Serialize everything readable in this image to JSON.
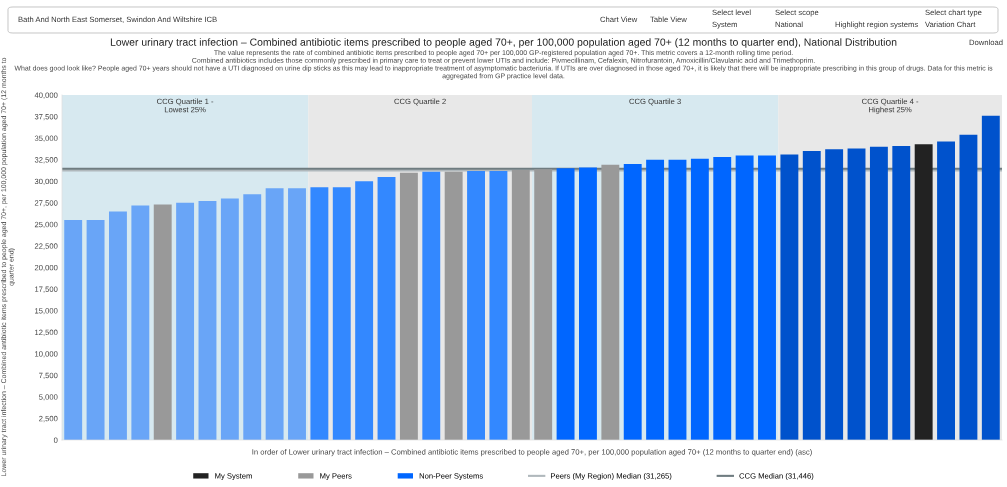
{
  "chart_data": {
    "type": "bar",
    "title": "Lower urinary tract infection – Combined antibiotic items prescribed to people aged 70+, per 100,000 population aged 70+ (12 months to quarter end), National Distribution",
    "subtitle": "The value represents the rate of combined antibiotic items prescribed to people aged 70+ per 100,000 GP-registered population aged 70+. This metric covers a 12-month rolling time period.\nCombined antibiotics includes those commonly prescribed in primary care to treat or prevent lower UTIs and include: Pivmecillinam, Cefalexin, Nitrofurantoin, Amoxicillin/Clavulanic acid and Trimethoprim.\nWhat does good look like? People aged 70+ years should not have a UTI diagnosed on urine dip sticks as this may lead to inappropriate treatment of asymptomatic bacteriuria. If UTIs are over diagnosed in those aged 70+, it is likely that there will be inappropriate prescribing in this group of drugs. Data for this metric is aggregated from GP practice level data.",
    "ylabel": "Lower urinary tract infection – Combined antibiotic items prescribed to people aged 70+, per 100,000 population aged 70+ (12 months to quarter end)",
    "xlabel": "In order of Lower urinary tract infection – Combined antibiotic items prescribed to people aged 70+, per 100,000 population aged 70+ (12 months to quarter end) (asc)",
    "annotations": [
      "CCG Quartile 1 -\nLowest 25%",
      "CCG Quartile 2",
      "CCG Quartile 3",
      "CCG Quartile 4 -\nHighest 25%",
      "Bath And North East Somerset, Swindon And Wiltshire ICB",
      "Chart View",
      "Table View",
      "Select level",
      "System",
      "Select scope",
      "National",
      "Highlight region systems",
      "Select chart type",
      "Variation Chart",
      "Download"
    ],
    "categories": [
      null,
      null,
      null,
      null,
      null,
      null,
      null,
      null,
      null,
      null,
      null,
      null,
      null,
      null,
      null,
      null,
      null,
      null,
      null,
      null,
      null,
      null,
      null,
      null,
      null,
      null,
      null,
      null,
      null,
      null,
      null,
      null,
      null,
      null,
      null,
      null,
      null,
      null,
      null,
      null,
      null,
      null
    ],
    "series": [
      {
        "name": "My System",
        "color": "#222222",
        "values": [
          null,
          null,
          null,
          null,
          null,
          null,
          null,
          null,
          null,
          null,
          null,
          null,
          null,
          null,
          null,
          null,
          null,
          null,
          null,
          null,
          null,
          null,
          null,
          null,
          null,
          null,
          null,
          null,
          null,
          null,
          null,
          null,
          null,
          null,
          null,
          null,
          null,
          null,
          34300,
          null,
          null,
          null
        ]
      },
      {
        "name": "My Peers",
        "color": "#999999",
        "values": [
          null,
          null,
          null,
          null,
          27300,
          null,
          null,
          null,
          null,
          null,
          null,
          null,
          null,
          null,
          null,
          31000,
          null,
          31100,
          null,
          null,
          31300,
          31400,
          null,
          null,
          31900,
          null,
          null,
          null,
          null,
          null,
          null,
          null,
          null,
          null,
          null,
          null,
          null,
          null,
          null,
          null,
          null,
          null
        ]
      },
      {
        "name": "Non-Peer Systems",
        "color": "#0066ff",
        "values": [
          25500,
          25500,
          26500,
          27200,
          null,
          27500,
          27700,
          28000,
          28500,
          29200,
          29200,
          29300,
          29300,
          30000,
          30500,
          null,
          31100,
          null,
          31200,
          31200,
          null,
          null,
          31500,
          31600,
          null,
          32000,
          32500,
          32500,
          32600,
          32800,
          33000,
          33000,
          33100,
          33500,
          33700,
          33800,
          34000,
          34100,
          null,
          34600,
          35400,
          37600
        ],
        "colors": [
          "#69a5f7",
          "#69a5f7",
          "#69a5f7",
          "#69a5f7",
          null,
          "#69a5f7",
          "#69a5f7",
          "#69a5f7",
          "#69a5f7",
          "#69a5f7",
          "#69a5f7",
          "#3388ff",
          "#3388ff",
          "#3388ff",
          "#3388ff",
          null,
          "#3388ff",
          null,
          "#3388ff",
          "#3388ff",
          null,
          null,
          "#0066ff",
          "#0066ff",
          null,
          "#0066ff",
          "#0066ff",
          "#0066ff",
          "#0066ff",
          "#0066ff",
          "#0066ff",
          "#0066ff",
          "#0052cc",
          "#0052cc",
          "#0052cc",
          "#0052cc",
          "#0052cc",
          "#0052cc",
          null,
          "#0052cc",
          "#0052cc",
          "#0052cc"
        ]
      }
    ],
    "ylim": [
      0,
      40000
    ],
    "yticks": [
      0,
      {
        "value": 2500,
        "label": "2,500"
      },
      {
        "value": 5000,
        "label": "5,000"
      },
      {
        "value": 7500,
        "label": "7,500"
      },
      {
        "value": 10000,
        "label": "10,000"
      },
      {
        "value": 12500,
        "label": "12,500"
      },
      {
        "value": 15000,
        "label": "15,000"
      },
      {
        "value": 17500,
        "label": "17,500"
      },
      {
        "value": 20000,
        "label": "20,000"
      },
      {
        "value": 22500,
        "label": "22,500"
      },
      {
        "value": 25000,
        "label": "25,000"
      },
      {
        "value": 27500,
        "label": "27,500"
      },
      {
        "value": 30000,
        "label": "30,000"
      },
      {
        "value": 32500,
        "label": "32,500"
      },
      {
        "value": 35000,
        "label": "35,000"
      },
      {
        "value": 37500,
        "label": "37,500"
      },
      {
        "value": 40000,
        "label": "40,000"
      }
    ],
    "ref_lines": [
      {
        "axis": "y",
        "value": 31265,
        "label": "Peers (My Region) Median (31,265)",
        "color": "#b0b8bc",
        "line_style": "solid"
      },
      {
        "axis": "y",
        "value": 31446,
        "label": "CCG Median (31,446)",
        "color": "#6f7c80",
        "line_style": "solid"
      }
    ],
    "legend": "bottom",
    "grid": false
  }
}
